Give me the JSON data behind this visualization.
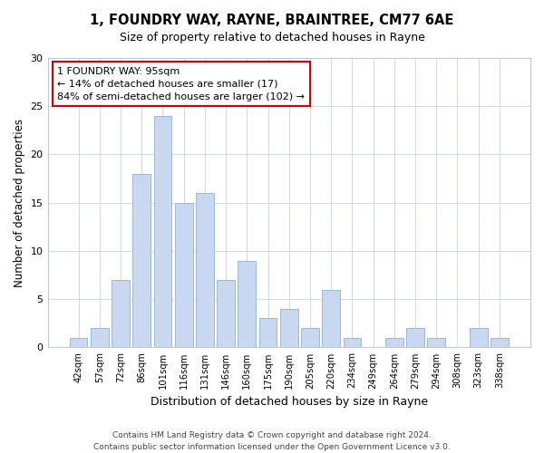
{
  "title1": "1, FOUNDRY WAY, RAYNE, BRAINTREE, CM77 6AE",
  "title2": "Size of property relative to detached houses in Rayne",
  "xlabel": "Distribution of detached houses by size in Rayne",
  "ylabel": "Number of detached properties",
  "bar_color": "#c8d8f0",
  "bar_edge_color": "#9ab8d8",
  "categories": [
    "42sqm",
    "57sqm",
    "72sqm",
    "86sqm",
    "101sqm",
    "116sqm",
    "131sqm",
    "146sqm",
    "160sqm",
    "175sqm",
    "190sqm",
    "205sqm",
    "220sqm",
    "234sqm",
    "249sqm",
    "264sqm",
    "279sqm",
    "294sqm",
    "308sqm",
    "323sqm",
    "338sqm"
  ],
  "values": [
    1,
    2,
    7,
    18,
    24,
    15,
    16,
    7,
    9,
    3,
    4,
    2,
    6,
    1,
    0,
    1,
    2,
    1,
    0,
    2,
    1
  ],
  "ylim": [
    0,
    30
  ],
  "yticks": [
    0,
    5,
    10,
    15,
    20,
    25,
    30
  ],
  "annotation_line1": "1 FOUNDRY WAY: 95sqm",
  "annotation_line2": "← 14% of detached houses are smaller (17)",
  "annotation_line3": "84% of semi-detached houses are larger (102) →",
  "annotation_box_color": "#ffffff",
  "annotation_box_edge_color": "#cc0000",
  "footer1": "Contains HM Land Registry data © Crown copyright and database right 2024.",
  "footer2": "Contains public sector information licensed under the Open Government Licence v3.0."
}
